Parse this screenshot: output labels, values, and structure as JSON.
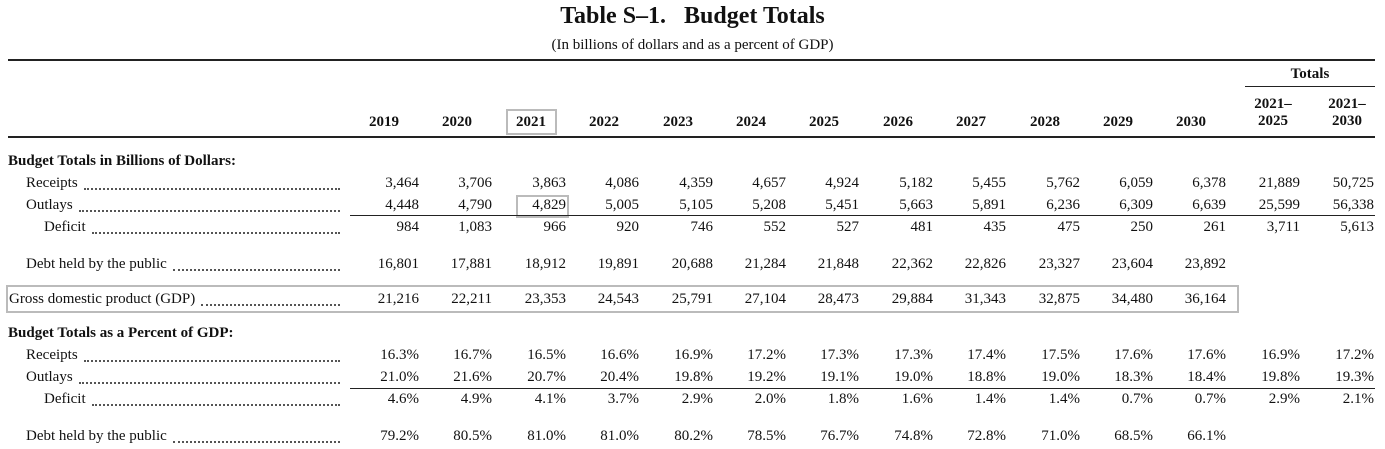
{
  "title": "Table S–1.   Budget Totals",
  "subtitle": "(In billions of dollars and as a percent of GDP)",
  "totals_header": "Totals",
  "columns": [
    "2019",
    "2020",
    "2021",
    "2022",
    "2023",
    "2024",
    "2025",
    "2026",
    "2027",
    "2028",
    "2029",
    "2030"
  ],
  "total_columns": [
    [
      "2021–",
      "2025"
    ],
    [
      "2021–",
      "2030"
    ]
  ],
  "sections": [
    {
      "title": "Budget Totals in Billions of Dollars:",
      "rows": [
        {
          "label": "Receipts",
          "values": [
            "3,464",
            "3,706",
            "3,863",
            "4,086",
            "4,359",
            "4,657",
            "4,924",
            "5,182",
            "5,455",
            "5,762",
            "6,059",
            "6,378",
            "21,889",
            "50,725"
          ]
        },
        {
          "label": "Outlays",
          "values": [
            "4,448",
            "4,790",
            "4,829",
            "5,005",
            "5,105",
            "5,208",
            "5,451",
            "5,663",
            "5,891",
            "6,236",
            "6,309",
            "6,639",
            "25,599",
            "56,338"
          ]
        },
        {
          "label": "Deficit",
          "values": [
            "984",
            "1,083",
            "966",
            "920",
            "746",
            "552",
            "527",
            "481",
            "435",
            "475",
            "250",
            "261",
            "3,711",
            "5,613"
          ]
        },
        {
          "label": "Debt held by the public",
          "values": [
            "16,801",
            "17,881",
            "18,912",
            "19,891",
            "20,688",
            "21,284",
            "21,848",
            "22,362",
            "22,826",
            "23,327",
            "23,604",
            "23,892"
          ]
        },
        {
          "label": "Gross domestic product (GDP)",
          "values": [
            "21,216",
            "22,211",
            "23,353",
            "24,543",
            "25,791",
            "27,104",
            "28,473",
            "29,884",
            "31,343",
            "32,875",
            "34,480",
            "36,164"
          ]
        }
      ]
    },
    {
      "title": "Budget Totals as a Percent of GDP:",
      "rows": [
        {
          "label": "Receipts",
          "values": [
            "16.3%",
            "16.7%",
            "16.5%",
            "16.6%",
            "16.9%",
            "17.2%",
            "17.3%",
            "17.3%",
            "17.4%",
            "17.5%",
            "17.6%",
            "17.6%",
            "16.9%",
            "17.2%"
          ]
        },
        {
          "label": "Outlays",
          "values": [
            "21.0%",
            "21.6%",
            "20.7%",
            "20.4%",
            "19.8%",
            "19.2%",
            "19.1%",
            "19.0%",
            "18.8%",
            "19.0%",
            "18.3%",
            "18.4%",
            "19.8%",
            "19.3%"
          ]
        },
        {
          "label": "Deficit",
          "values": [
            "4.6%",
            "4.9%",
            "4.1%",
            "3.7%",
            "2.9%",
            "2.0%",
            "1.8%",
            "1.6%",
            "1.4%",
            "1.4%",
            "0.7%",
            "0.7%",
            "2.9%",
            "2.1%"
          ]
        },
        {
          "label": "Debt held by the public",
          "values": [
            "79.2%",
            "80.5%",
            "81.0%",
            "81.0%",
            "80.2%",
            "78.5%",
            "76.7%",
            "74.8%",
            "72.8%",
            "71.0%",
            "68.5%",
            "66.1%"
          ]
        }
      ]
    }
  ]
}
